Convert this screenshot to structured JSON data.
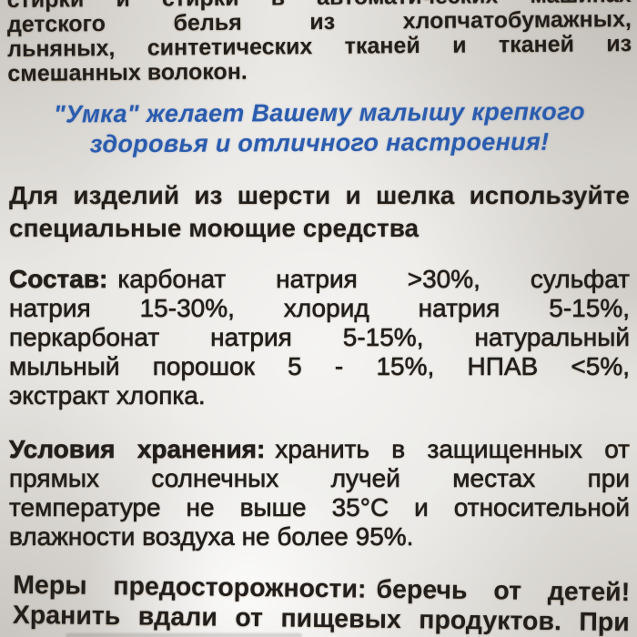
{
  "label": {
    "intro": {
      "lines": [
        "стирки и стирки в автоматических машинах",
        "детского белья из хлопчатобумажных,",
        "льняных, синтетических тканей и тканей из",
        "смешанных волокон."
      ]
    },
    "slogan": {
      "color": "#2b5cae",
      "lines": [
        "\"Умка\" желает Вашему малышу крепкого",
        "здоровья и отличного настроения!"
      ]
    },
    "wool_note": {
      "lines": [
        "Для изделий из шерсти и шелка используйте",
        "специальные моющие средства"
      ]
    },
    "composition": {
      "lead": "Состав:",
      "lines": [
        "карбонат натрия >30%, сульфат",
        "натрия 15-30%, хлорид натрия 5-15%,",
        "перкарбонат натрия 5-15%, натуральный",
        "мыльный порошок 5 - 15%, НПАВ <5%,",
        "экстракт хлопка."
      ]
    },
    "storage": {
      "lead": "Условия хранения:",
      "lines": [
        "хранить в защищенных от",
        "прямых солнечных лучей местах при",
        "температуре не выше 35°С и относительной",
        "влажности воздуха не более 95%."
      ]
    },
    "precautions": {
      "lead": "Меры предосторожности:",
      "lines": [
        "беречь от детей!",
        "Хранить вдали от пищевых продуктов. При"
      ]
    }
  }
}
